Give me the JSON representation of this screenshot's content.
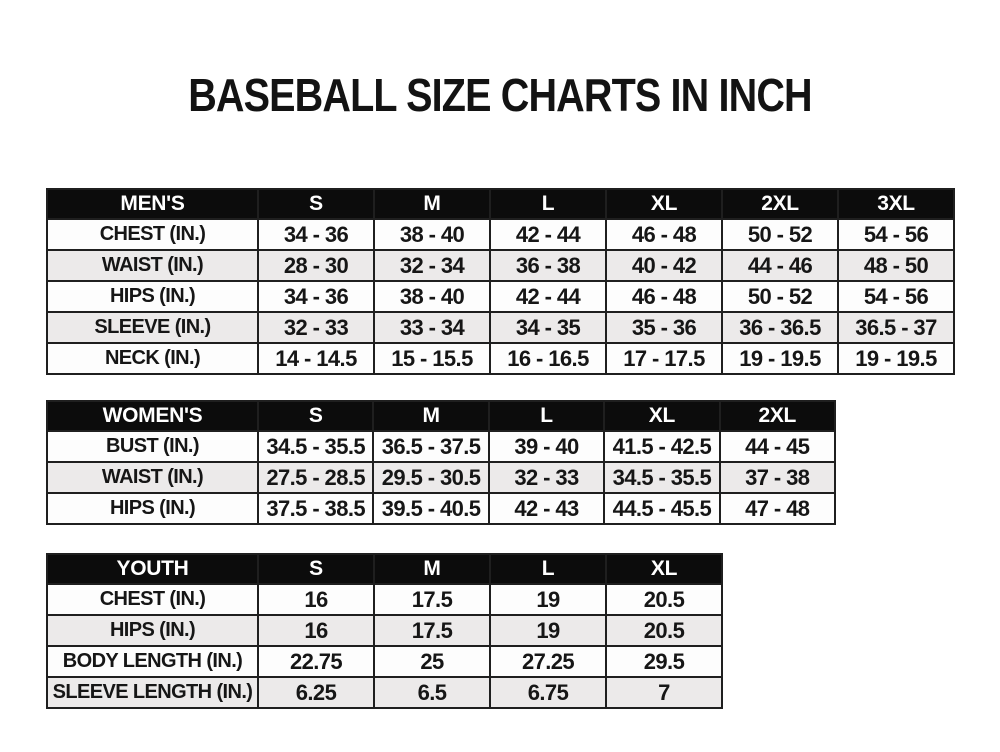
{
  "page": {
    "title": "BASEBALL SIZE CHARTS IN INCH"
  },
  "colors": {
    "header_bg": "#0c0c0c",
    "header_text": "#ffffff",
    "row_bg": "#fdfdfd",
    "row_alt_bg": "#eceaea",
    "border": "#1f1f1f",
    "cell_text": "#161616"
  },
  "tables": [
    {
      "id": "mens",
      "header": [
        "MEN'S",
        "S",
        "M",
        "L",
        "XL",
        "2XL",
        "3XL"
      ],
      "rows": [
        {
          "label": "CHEST (IN.)",
          "values": [
            "34 - 36",
            "38 - 40",
            "42 - 44",
            "46 - 48",
            "50 - 52",
            "54 - 56"
          ]
        },
        {
          "label": "WAIST (IN.)",
          "values": [
            "28 - 30",
            "32 - 34",
            "36 - 38",
            "40 - 42",
            "44 - 46",
            "48 - 50"
          ]
        },
        {
          "label": "HIPS (IN.)",
          "values": [
            "34 - 36",
            "38 - 40",
            "42 - 44",
            "46 - 48",
            "50 - 52",
            "54 - 56"
          ]
        },
        {
          "label": "SLEEVE (IN.)",
          "values": [
            "32 - 33",
            "33 - 34",
            "34 - 35",
            "35 - 36",
            "36 - 36.5",
            "36.5 - 37"
          ]
        },
        {
          "label": "NECK (IN.)",
          "values": [
            "14 - 14.5",
            "15 - 15.5",
            "16 - 16.5",
            "17 - 17.5",
            "19 - 19.5",
            "19 - 19.5"
          ]
        }
      ]
    },
    {
      "id": "womens",
      "header": [
        "WOMEN'S",
        "S",
        "M",
        "L",
        "XL",
        "2XL"
      ],
      "rows": [
        {
          "label": "BUST (IN.)",
          "values": [
            "34.5 - 35.5",
            "36.5 - 37.5",
            "39 - 40",
            "41.5 - 42.5",
            "44 - 45"
          ]
        },
        {
          "label": "WAIST (IN.)",
          "values": [
            "27.5 - 28.5",
            "29.5 - 30.5",
            "32 - 33",
            "34.5 - 35.5",
            "37 - 38"
          ]
        },
        {
          "label": "HIPS (IN.)",
          "values": [
            "37.5 - 38.5",
            "39.5 - 40.5",
            "42 - 43",
            "44.5 - 45.5",
            "47 - 48"
          ]
        }
      ]
    },
    {
      "id": "youth",
      "header": [
        "YOUTH",
        "S",
        "M",
        "L",
        "XL"
      ],
      "rows": [
        {
          "label": "CHEST (IN.)",
          "values": [
            "16",
            "17.5",
            "19",
            "20.5"
          ]
        },
        {
          "label": "HIPS (IN.)",
          "values": [
            "16",
            "17.5",
            "19",
            "20.5"
          ]
        },
        {
          "label": "BODY LENGTH (IN.)",
          "values": [
            "22.75",
            "25",
            "27.25",
            "29.5"
          ]
        },
        {
          "label": "SLEEVE LENGTH (IN.)",
          "values": [
            "6.25",
            "6.5",
            "6.75",
            "7"
          ]
        }
      ]
    }
  ]
}
